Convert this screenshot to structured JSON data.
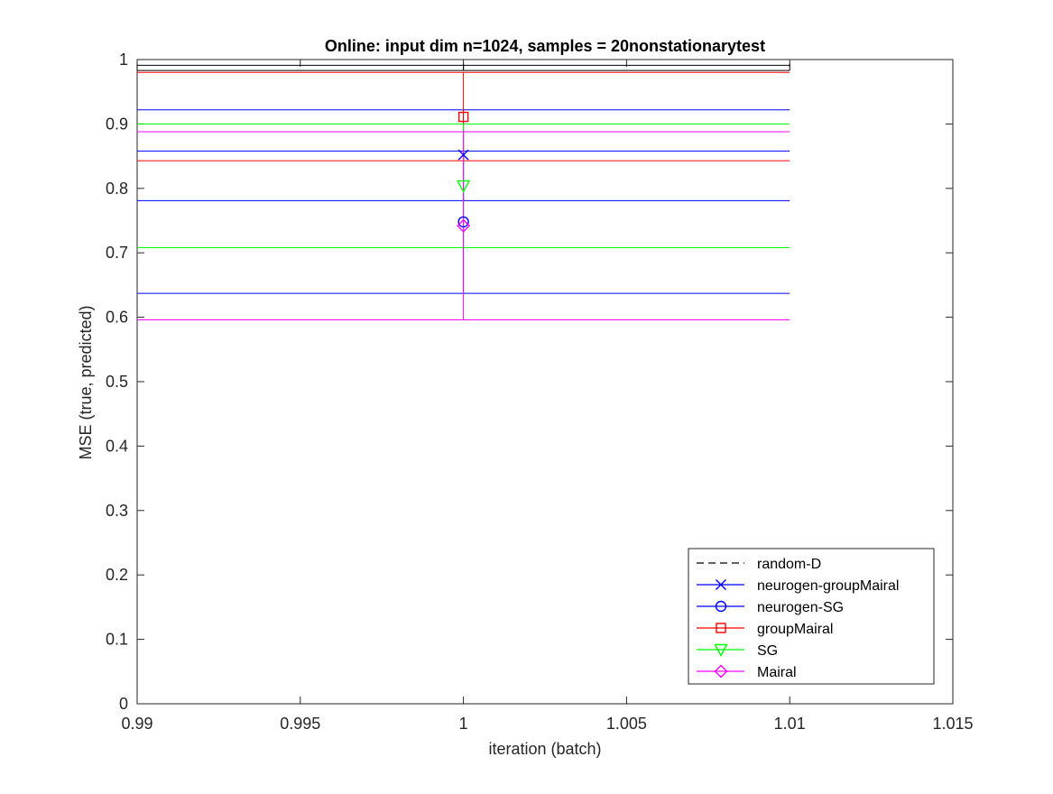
{
  "chart_data": {
    "type": "line",
    "title": "Online:  input dim n=1024, samples = 20nonstationarytest",
    "xlabel": "iteration (batch)",
    "ylabel": "MSE (true, predicted)",
    "xlim": [
      0.99,
      1.015
    ],
    "ylim": [
      0,
      1
    ],
    "xticks": [
      0.99,
      0.995,
      1,
      1.005,
      1.01,
      1.015
    ],
    "xtick_labels": [
      "0.99",
      "0.995",
      "1",
      "1.005",
      "1.01",
      "1.015"
    ],
    "yticks": [
      0,
      0.1,
      0.2,
      0.3,
      0.4,
      0.5,
      0.6,
      0.7,
      0.8,
      0.9,
      1
    ],
    "ytick_labels": [
      "0",
      "0.1",
      "0.2",
      "0.3",
      "0.4",
      "0.5",
      "0.6",
      "0.7",
      "0.8",
      "0.9",
      "1"
    ],
    "grid": false,
    "legend_position": "bottom-right",
    "errorbar_x_range": [
      0.99,
      1.01
    ],
    "series": [
      {
        "name": "random-D",
        "color": "#000000",
        "line": "dashed",
        "marker": "none",
        "x": [
          1
        ],
        "y": [
          0.987
        ],
        "err_low": 0.983,
        "err_high": 0.991,
        "show_in_plot_marker": false
      },
      {
        "name": "neurogen-groupMairal",
        "color": "#0000ff",
        "line": "solid",
        "marker": "x",
        "x": [
          1
        ],
        "y": [
          0.852
        ],
        "err_low": 0.781,
        "err_high": 0.922
      },
      {
        "name": "neurogen-SG",
        "color": "#0000ff",
        "line": "solid",
        "marker": "circle",
        "x": [
          1
        ],
        "y": [
          0.748
        ],
        "err_low": 0.637,
        "err_high": 0.858
      },
      {
        "name": "groupMairal",
        "color": "#ff0000",
        "line": "solid",
        "marker": "square",
        "x": [
          1
        ],
        "y": [
          0.911
        ],
        "err_low": 0.843,
        "err_high": 0.98
      },
      {
        "name": "SG",
        "color": "#00ff00",
        "line": "solid",
        "marker": "triangle-down",
        "x": [
          1
        ],
        "y": [
          0.804
        ],
        "err_low": 0.708,
        "err_high": 0.9
      },
      {
        "name": "Mairal",
        "color": "#ff00ff",
        "line": "solid",
        "marker": "diamond",
        "x": [
          1
        ],
        "y": [
          0.742
        ],
        "err_low": 0.596,
        "err_high": 0.888
      }
    ]
  }
}
